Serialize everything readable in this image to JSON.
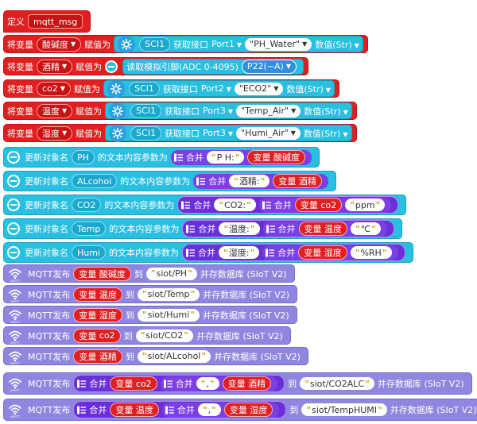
{
  "define": {
    "label": "定义",
    "name": "mqtt_msg"
  },
  "assign_rows": [
    {
      "prefix": "将变量",
      "var": "酸碱度",
      "assign": "赋值为",
      "sensor": "SCI1",
      "get": "获取接口",
      "port": "Port1",
      "key": "PH_Water",
      "value": "数值(Str)"
    },
    {
      "prefix": "将变量",
      "var": "酒精",
      "assign": "赋值为",
      "analog": "读取模拟引脚(ADC 0-4095)",
      "pin": "P22(~A)"
    },
    {
      "prefix": "将变量",
      "var": "co2",
      "assign": "赋值为",
      "sensor": "SCI1",
      "get": "获取接口",
      "port": "Port2",
      "key": "ECO2",
      "value": "数值(Str)"
    },
    {
      "prefix": "将变量",
      "var": "温度",
      "assign": "赋值为",
      "sensor": "SCI1",
      "get": "获取接口",
      "port": "Port3",
      "key": "Temp_Air",
      "value": "数值(Str)"
    },
    {
      "prefix": "将变量",
      "var": "湿度",
      "assign": "赋值为",
      "sensor": "SCI1",
      "get": "获取接口",
      "port": "Port3",
      "key": "Humi_Air",
      "value": "数值(Str)"
    }
  ],
  "update_rows": [
    {
      "prefix": "更新对象名",
      "obj": "PH",
      "suffix": "的文本内容参数为",
      "join": "合并",
      "str": "P H:",
      "varlabel": "变量",
      "var": "酸碱度"
    },
    {
      "prefix": "更新对象名",
      "obj": "ALcohol",
      "suffix": "的文本内容参数为",
      "join": "合并",
      "str": "酒精:",
      "varlabel": "变量",
      "var": "酒精"
    },
    {
      "prefix": "更新对象名",
      "obj": "CO2",
      "suffix": "的文本内容参数为",
      "join": "合并",
      "str": "CO2:",
      "join2": "合并",
      "varlabel": "变量",
      "var": "co2",
      "str2": "ppm"
    },
    {
      "prefix": "更新对象名",
      "obj": "Temp",
      "suffix": "的文本内容参数为",
      "join": "合并",
      "str": "温度:",
      "join2": "合并",
      "varlabel": "变量",
      "var": "温度",
      "str2": "℃"
    },
    {
      "prefix": "更新对象名",
      "obj": "Humi",
      "suffix": "的文本内容参数为",
      "join": "合并",
      "str": "湿度:",
      "join2": "合并",
      "varlabel": "变量",
      "var": "湿度",
      "str2": "%RH"
    }
  ],
  "mqtt_rows": [
    {
      "label": "MQTT发布",
      "varlabel": "变量",
      "var": "酸碱度",
      "to": "到",
      "topic": "siot/PH",
      "save": "并存数据库 (SIoT V2)"
    },
    {
      "label": "MQTT发布",
      "varlabel": "变量",
      "var": "温度",
      "to": "到",
      "topic": "siot/Temp",
      "save": "并存数据库 (SIoT V2)"
    },
    {
      "label": "MQTT发布",
      "varlabel": "变量",
      "var": "湿度",
      "to": "到",
      "topic": "siot/Humi",
      "save": "并存数据库 (SIoT V2)"
    },
    {
      "label": "MQTT发布",
      "varlabel": "变量",
      "var": "co2",
      "to": "到",
      "topic": "siot/CO2",
      "save": "并存数据库 (SIoT V2)"
    },
    {
      "label": "MQTT发布",
      "varlabel": "变量",
      "var": "酒精",
      "to": "到",
      "topic": "siot/ALcohol",
      "save": "并存数据库 (SIoT V2)"
    }
  ],
  "mqtt_join_rows": [
    {
      "label": "MQTT发布",
      "join": "合并",
      "varlabel": "变量",
      "var": "co2",
      "join2": "合并",
      "sep": ",",
      "varlabel2": "变量",
      "var2": "酒精",
      "to": "到",
      "topic": "siot/CO2ALC",
      "save": "并存数据库 (SIoT V2)"
    },
    {
      "label": "MQTT发布",
      "join": "合并",
      "varlabel": "变量",
      "var": "温度",
      "join2": "合并",
      "sep": ",",
      "varlabel2": "变量",
      "var2": "湿度",
      "to": "到",
      "topic": "siot/TempHUMI",
      "save": "并存数据库 (SIoT V2)"
    }
  ],
  "colors": {
    "red": "#e02020",
    "cyan": "#29bfe0",
    "purple": "#8f86e0",
    "join": "#7b3fe4"
  }
}
